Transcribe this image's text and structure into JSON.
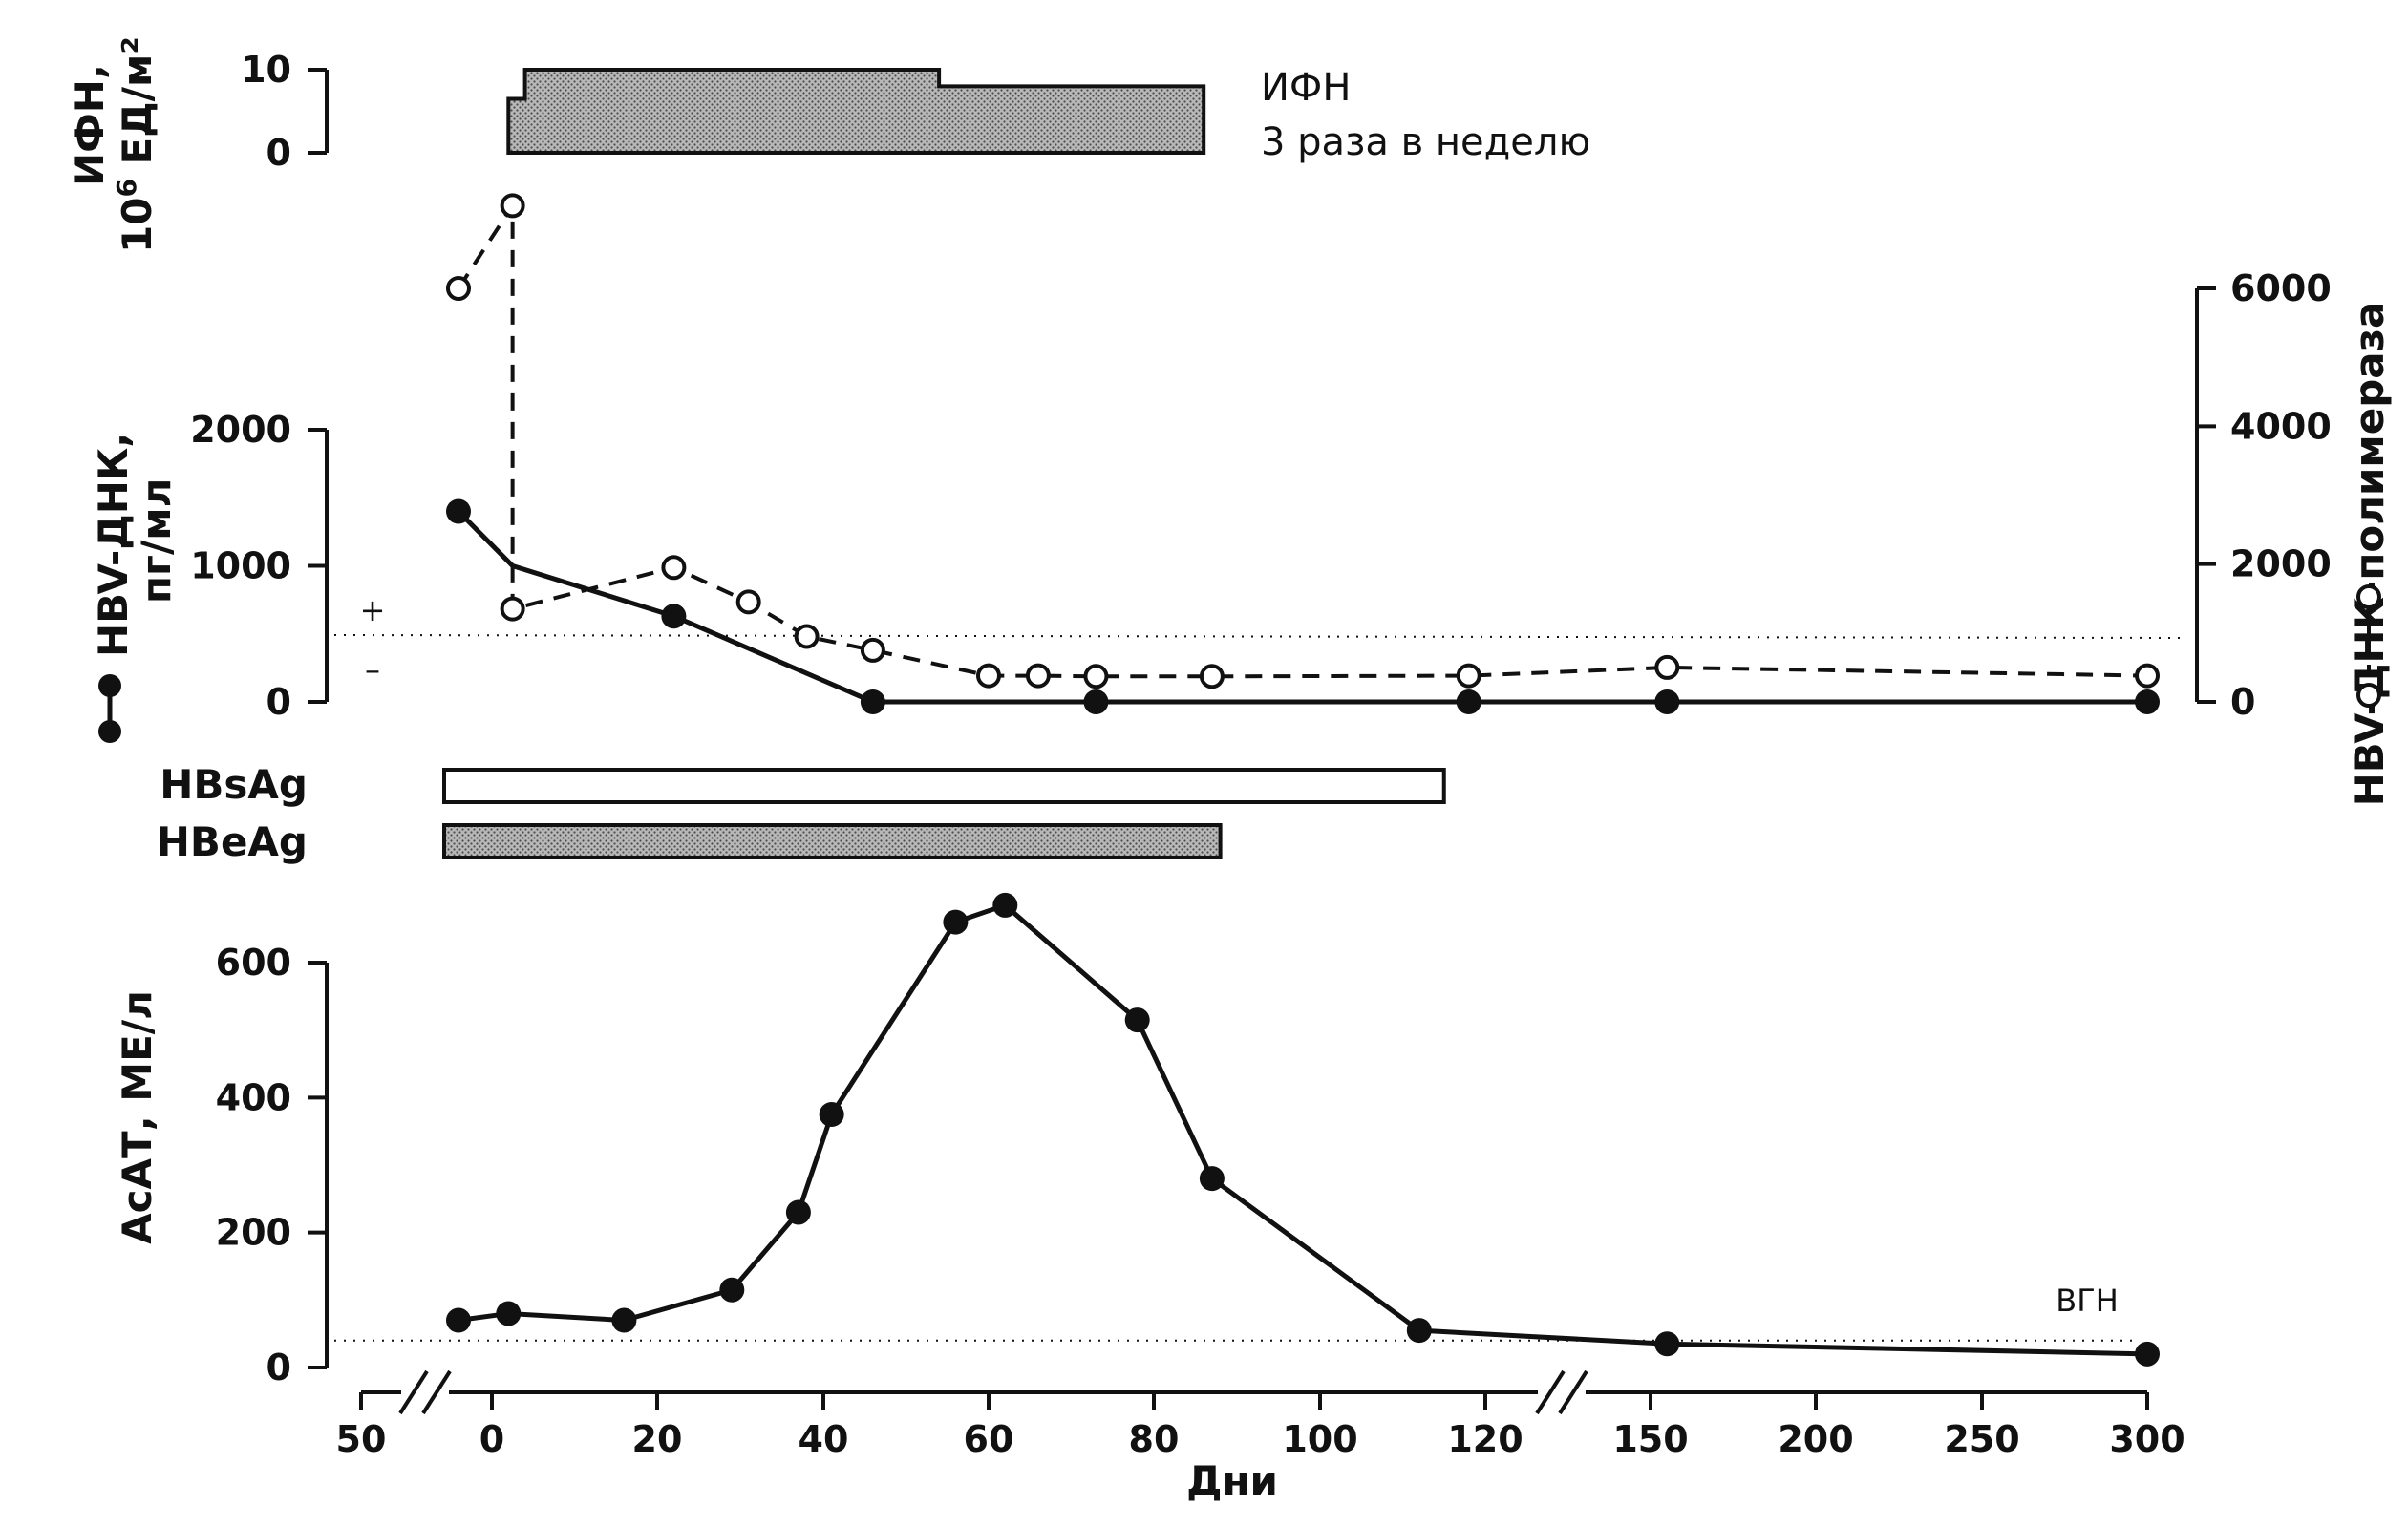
{
  "chart_data": [
    {
      "type": "area",
      "panel": "interferon",
      "ylabel_line1": "ИФН,",
      "ylabel_line2": "10",
      "ylabel_sup": "6",
      "ylabel_unit": " ЕД/м²",
      "ylim": [
        0,
        10
      ],
      "yticks": [
        "10",
        "0"
      ],
      "annotation_line1": "ИФН",
      "annotation_line2": "3 раза в неделю",
      "steps": [
        {
          "x_start": 2,
          "x_end": 4,
          "value": 6.5
        },
        {
          "x_start": 4,
          "x_end": 54,
          "value": 10
        },
        {
          "x_start": 54,
          "x_end": 86,
          "value": 8
        }
      ]
    },
    {
      "type": "line",
      "panel": "hbv-dna",
      "ylabel_line1": "HBV-ДНК,",
      "ylabel_line2": "пг/мл",
      "ylim": [
        0,
        2000
      ],
      "yticks": [
        "2000",
        "1000",
        "0"
      ],
      "y2label": "HBV-ДНК-полимераза",
      "y2lim": [
        0,
        6000
      ],
      "y2ticks": [
        "6000",
        "4000",
        "2000",
        "0"
      ],
      "plus_label": "+",
      "minus_label": "–",
      "series": [
        {
          "style": "filled-solid",
          "axis": "left",
          "points": [
            [
              -7,
              1400
            ],
            [
              2.5,
              1000
            ],
            [
              22,
              630
            ],
            [
              46,
              0
            ],
            [
              73,
              0
            ],
            [
              118,
              0
            ],
            [
              155,
              0
            ],
            [
              300,
              0
            ]
          ]
        },
        {
          "style": "open-dashed",
          "axis": "right",
          "points": [
            [
              -7,
              6000
            ],
            [
              2.5,
              7200
            ],
            [
              2.5,
              1350
            ],
            [
              22,
              1950
            ],
            [
              31,
              1450
            ],
            [
              38,
              950
            ],
            [
              46,
              750
            ],
            [
              60,
              380
            ],
            [
              66,
              380
            ],
            [
              73,
              370
            ],
            [
              87,
              370
            ],
            [
              118,
              380
            ],
            [
              155,
              500
            ],
            [
              300,
              380
            ]
          ]
        }
      ]
    },
    {
      "type": "bar",
      "panel": "antigens",
      "bars": [
        {
          "label": "HBsAg",
          "x_start": -10,
          "x_end": 115,
          "fill": "#ffffff"
        },
        {
          "label": "HBeAg",
          "x_start": -10,
          "x_end": 88,
          "fill": "#9a9a9a"
        }
      ]
    },
    {
      "type": "line",
      "panel": "ast",
      "ylabel": "АсАТ, МЕ/л",
      "xlabel": "Дни",
      "ylim": [
        0,
        700
      ],
      "yticks": [
        "600",
        "400",
        "200",
        "0"
      ],
      "xticks": [
        "50",
        "0",
        "20",
        "40",
        "60",
        "80",
        "100",
        "120",
        "150",
        "200",
        "250",
        "300"
      ],
      "uln_label": "ВГН",
      "uln_value": 40,
      "series": [
        {
          "style": "filled-solid",
          "points": [
            [
              -7,
              70
            ],
            [
              2,
              80
            ],
            [
              16,
              70
            ],
            [
              29,
              115
            ],
            [
              37,
              230
            ],
            [
              41,
              375
            ],
            [
              56,
              660
            ],
            [
              62,
              685
            ],
            [
              78,
              515
            ],
            [
              87,
              280
            ],
            [
              112,
              55
            ],
            [
              155,
              35
            ],
            [
              300,
              20
            ]
          ]
        }
      ]
    }
  ]
}
